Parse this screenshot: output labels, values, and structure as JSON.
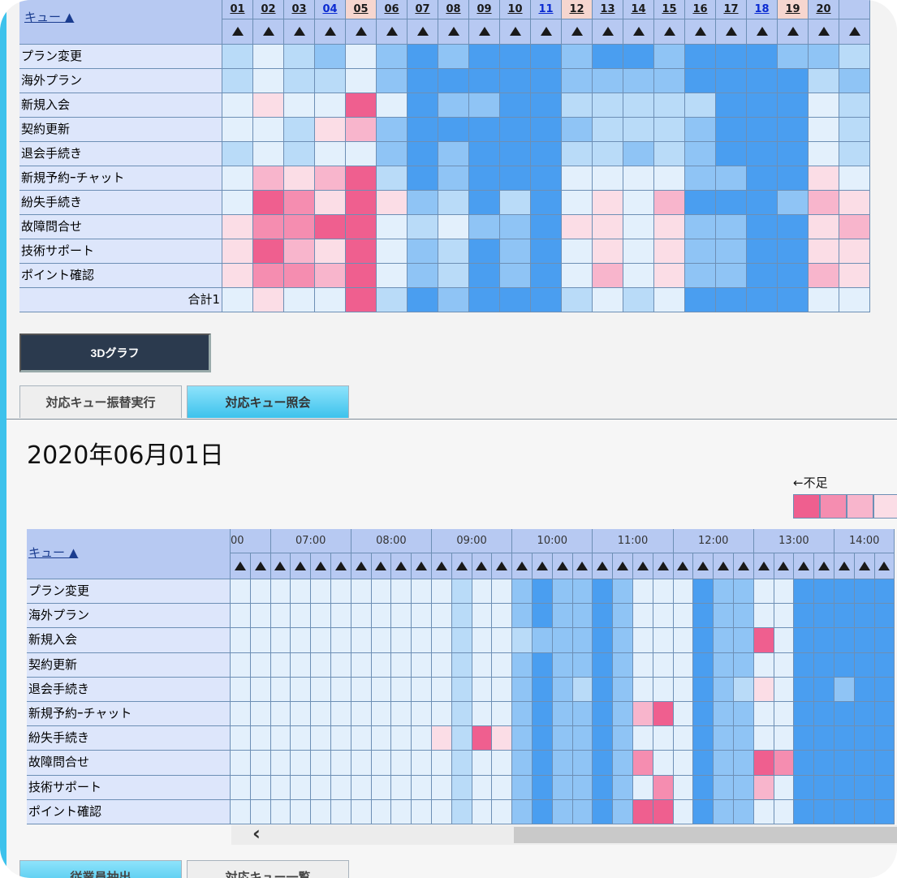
{
  "top_table": {
    "corner_label": "キュー ▲",
    "day_columns": [
      {
        "label": "01",
        "color": "#1a1a1a",
        "bg": "#b7c9f2"
      },
      {
        "label": "02",
        "color": "#1a1a1a",
        "bg": "#b7c9f2"
      },
      {
        "label": "03",
        "color": "#1a1a1a",
        "bg": "#b7c9f2"
      },
      {
        "label": "04",
        "color": "#0b2bd1",
        "bg": "#b7c9f2"
      },
      {
        "label": "05",
        "color": "#1a1a1a",
        "bg": "#f6d6cf"
      },
      {
        "label": "06",
        "color": "#1a1a1a",
        "bg": "#b7c9f2"
      },
      {
        "label": "07",
        "color": "#1a1a1a",
        "bg": "#b7c9f2"
      },
      {
        "label": "08",
        "color": "#1a1a1a",
        "bg": "#b7c9f2"
      },
      {
        "label": "09",
        "color": "#1a1a1a",
        "bg": "#b7c9f2"
      },
      {
        "label": "10",
        "color": "#1a1a1a",
        "bg": "#b7c9f2"
      },
      {
        "label": "11",
        "color": "#0b2bd1",
        "bg": "#b7c9f2"
      },
      {
        "label": "12",
        "color": "#1a1a1a",
        "bg": "#f6d6cf"
      },
      {
        "label": "13",
        "color": "#1a1a1a",
        "bg": "#b7c9f2"
      },
      {
        "label": "14",
        "color": "#1a1a1a",
        "bg": "#b7c9f2"
      },
      {
        "label": "15",
        "color": "#1a1a1a",
        "bg": "#b7c9f2"
      },
      {
        "label": "16",
        "color": "#1a1a1a",
        "bg": "#b7c9f2"
      },
      {
        "label": "17",
        "color": "#1a1a1a",
        "bg": "#b7c9f2"
      },
      {
        "label": "18",
        "color": "#0b2bd1",
        "bg": "#b7c9f2"
      },
      {
        "label": "19",
        "color": "#1a1a1a",
        "bg": "#f6d6cf"
      },
      {
        "label": "20",
        "color": "#1a1a1a",
        "bg": "#b7c9f2"
      },
      {
        "label": "",
        "color": "#1a1a1a",
        "bg": "#b7c9f2"
      }
    ],
    "rows": [
      {
        "label": "プラン変更",
        "cells": [
          "m",
          "l",
          "m",
          "h",
          "l",
          "h",
          "D",
          "h",
          "D",
          "D",
          "D",
          "h",
          "D",
          "D",
          "h",
          "D",
          "D",
          "D",
          "h",
          "h",
          "m"
        ]
      },
      {
        "label": "海外プラン",
        "cells": [
          "m",
          "l",
          "m",
          "m",
          "l",
          "h",
          "D",
          "D",
          "D",
          "D",
          "D",
          "h",
          "h",
          "h",
          "h",
          "D",
          "D",
          "D",
          "D",
          "m",
          "h"
        ]
      },
      {
        "label": "新規入会",
        "cells": [
          "l",
          "p1",
          "l",
          "l",
          "p4",
          "l",
          "D",
          "h",
          "h",
          "D",
          "D",
          "m",
          "m",
          "m",
          "m",
          "m",
          "D",
          "D",
          "D",
          "l",
          "m"
        ]
      },
      {
        "label": "契約更新",
        "cells": [
          "l",
          "l",
          "m",
          "p1",
          "p2",
          "h",
          "D",
          "D",
          "D",
          "D",
          "D",
          "h",
          "m",
          "m",
          "m",
          "h",
          "D",
          "D",
          "D",
          "l",
          "m"
        ]
      },
      {
        "label": "退会手続き",
        "cells": [
          "m",
          "l",
          "m",
          "l",
          "l",
          "h",
          "D",
          "h",
          "D",
          "D",
          "D",
          "m",
          "m",
          "h",
          "m",
          "h",
          "D",
          "D",
          "D",
          "l",
          "m"
        ]
      },
      {
        "label": "新規予約ｰチャット",
        "cells": [
          "l",
          "p2",
          "p1",
          "p2",
          "p4",
          "m",
          "D",
          "h",
          "D",
          "D",
          "D",
          "l",
          "l",
          "l",
          "l",
          "h",
          "h",
          "D",
          "D",
          "p1",
          "l"
        ]
      },
      {
        "label": "紛失手続き",
        "cells": [
          "l",
          "p4",
          "p3",
          "p1",
          "p4",
          "p1",
          "h",
          "m",
          "D",
          "m",
          "D",
          "l",
          "p1",
          "l",
          "p2",
          "D",
          "D",
          "D",
          "h",
          "p2",
          "p1"
        ]
      },
      {
        "label": "故障問合せ",
        "cells": [
          "p1",
          "p3",
          "p3",
          "p4",
          "p4",
          "l",
          "m",
          "l",
          "h",
          "h",
          "D",
          "p1",
          "p1",
          "l",
          "p1",
          "h",
          "h",
          "D",
          "D",
          "p1",
          "p2"
        ]
      },
      {
        "label": "技術サポート",
        "cells": [
          "p1",
          "p4",
          "p2",
          "p1",
          "p4",
          "l",
          "h",
          "m",
          "D",
          "h",
          "D",
          "l",
          "p1",
          "l",
          "p1",
          "h",
          "h",
          "D",
          "D",
          "p1",
          "p1"
        ]
      },
      {
        "label": "ポイント確認",
        "cells": [
          "p1",
          "p3",
          "p3",
          "p2",
          "p4",
          "l",
          "h",
          "m",
          "D",
          "h",
          "D",
          "l",
          "p2",
          "l",
          "p1",
          "h",
          "h",
          "D",
          "D",
          "p2",
          "p1"
        ]
      },
      {
        "label": "合計1",
        "cells": [
          "l",
          "p1",
          "l",
          "l",
          "p4",
          "m",
          "D",
          "h",
          "D",
          "D",
          "D",
          "m",
          "l",
          "m",
          "l",
          "D",
          "D",
          "D",
          "D",
          "l",
          "l"
        ]
      }
    ]
  },
  "graph_button": "3Dグラフ",
  "tabs": [
    {
      "label": "対応キュー振替実行",
      "active": false
    },
    {
      "label": "対応キュー照会",
      "active": true
    }
  ],
  "detail": {
    "date_title": "2020年06月01日",
    "legend_label": "←不足",
    "legend_colors": [
      "#ef5f8f",
      "#f58db0",
      "#f8b5cc",
      "#fbdde6"
    ],
    "corner_label": "キュー ▲",
    "hour_labels": [
      "00",
      "07:00",
      "08:00",
      "09:00",
      "10:00",
      "11:00",
      "12:00",
      "13:00",
      "14:00"
    ],
    "rows": [
      {
        "label": "プラン変更",
        "cells": [
          "l",
          "l",
          "l",
          "l",
          "l",
          "l",
          "l",
          "l",
          "l",
          "l",
          "l",
          "m",
          "l",
          "l",
          "h",
          "D",
          "h",
          "h",
          "D",
          "h",
          "l",
          "l",
          "l",
          "D",
          "h",
          "h",
          "l",
          "l",
          "D",
          "D",
          "D",
          "D",
          "D"
        ]
      },
      {
        "label": "海外プラン",
        "cells": [
          "l",
          "l",
          "l",
          "l",
          "l",
          "l",
          "l",
          "l",
          "l",
          "l",
          "l",
          "m",
          "l",
          "l",
          "h",
          "D",
          "h",
          "h",
          "D",
          "h",
          "l",
          "l",
          "l",
          "D",
          "h",
          "h",
          "l",
          "l",
          "D",
          "D",
          "D",
          "D",
          "D"
        ]
      },
      {
        "label": "新規入会",
        "cells": [
          "l",
          "l",
          "l",
          "l",
          "l",
          "l",
          "l",
          "l",
          "l",
          "l",
          "l",
          "m",
          "l",
          "l",
          "m",
          "h",
          "h",
          "h",
          "D",
          "h",
          "l",
          "l",
          "l",
          "D",
          "h",
          "h",
          "p4",
          "l",
          "D",
          "D",
          "D",
          "D",
          "D"
        ]
      },
      {
        "label": "契約更新",
        "cells": [
          "l",
          "l",
          "l",
          "l",
          "l",
          "l",
          "l",
          "l",
          "l",
          "l",
          "l",
          "m",
          "l",
          "l",
          "h",
          "D",
          "h",
          "h",
          "D",
          "h",
          "l",
          "l",
          "l",
          "D",
          "h",
          "h",
          "l",
          "l",
          "D",
          "D",
          "D",
          "D",
          "D"
        ]
      },
      {
        "label": "退会手続き",
        "cells": [
          "l",
          "l",
          "l",
          "l",
          "l",
          "l",
          "l",
          "l",
          "l",
          "l",
          "l",
          "m",
          "l",
          "l",
          "h",
          "D",
          "h",
          "m",
          "D",
          "h",
          "l",
          "l",
          "l",
          "D",
          "h",
          "m",
          "p1",
          "l",
          "D",
          "D",
          "h",
          "D",
          "D"
        ]
      },
      {
        "label": "新規予約ｰチャット",
        "cells": [
          "l",
          "l",
          "l",
          "l",
          "l",
          "l",
          "l",
          "l",
          "l",
          "l",
          "l",
          "m",
          "l",
          "l",
          "h",
          "D",
          "h",
          "h",
          "D",
          "h",
          "p2",
          "p4",
          "l",
          "D",
          "h",
          "h",
          "l",
          "l",
          "D",
          "D",
          "D",
          "D",
          "D"
        ]
      },
      {
        "label": "紛失手続き",
        "cells": [
          "l",
          "l",
          "l",
          "l",
          "l",
          "l",
          "l",
          "l",
          "l",
          "l",
          "p1",
          "m",
          "p4",
          "p1",
          "h",
          "D",
          "h",
          "h",
          "D",
          "h",
          "l",
          "l",
          "l",
          "D",
          "h",
          "h",
          "l",
          "l",
          "D",
          "D",
          "D",
          "D",
          "D"
        ]
      },
      {
        "label": "故障問合せ",
        "cells": [
          "l",
          "l",
          "l",
          "l",
          "l",
          "l",
          "l",
          "l",
          "l",
          "l",
          "l",
          "m",
          "l",
          "l",
          "h",
          "D",
          "h",
          "h",
          "D",
          "h",
          "p3",
          "l",
          "l",
          "D",
          "h",
          "h",
          "p4",
          "p3",
          "D",
          "D",
          "D",
          "D",
          "D"
        ]
      },
      {
        "label": "技術サポート",
        "cells": [
          "l",
          "l",
          "l",
          "l",
          "l",
          "l",
          "l",
          "l",
          "l",
          "l",
          "l",
          "m",
          "l",
          "l",
          "h",
          "D",
          "h",
          "h",
          "D",
          "h",
          "l",
          "p3",
          "l",
          "D",
          "h",
          "h",
          "p2",
          "l",
          "D",
          "D",
          "D",
          "D",
          "D"
        ]
      },
      {
        "label": "ポイント確認",
        "cells": [
          "l",
          "l",
          "l",
          "l",
          "l",
          "l",
          "l",
          "l",
          "l",
          "l",
          "l",
          "m",
          "l",
          "l",
          "h",
          "D",
          "h",
          "h",
          "D",
          "h",
          "p4",
          "p4",
          "l",
          "D",
          "h",
          "h",
          "l",
          "l",
          "D",
          "D",
          "D",
          "D",
          "D"
        ]
      }
    ]
  },
  "scroll_left_label": "‹",
  "bottom_tabs": [
    "従業員抽出",
    "対応キュー一覧"
  ],
  "colors": {
    "l": "#e3f0fc",
    "m": "#b9dbf8",
    "h": "#8fc4f5",
    "D": "#4a9ef0",
    "p1": "#fbdde6",
    "p2": "#f8b5cc",
    "p3": "#f58db0",
    "p4": "#ef5f8f",
    "accent": "#3dc2ec",
    "header": "#b7c9f2",
    "rowlabel": "#dde6fb"
  }
}
